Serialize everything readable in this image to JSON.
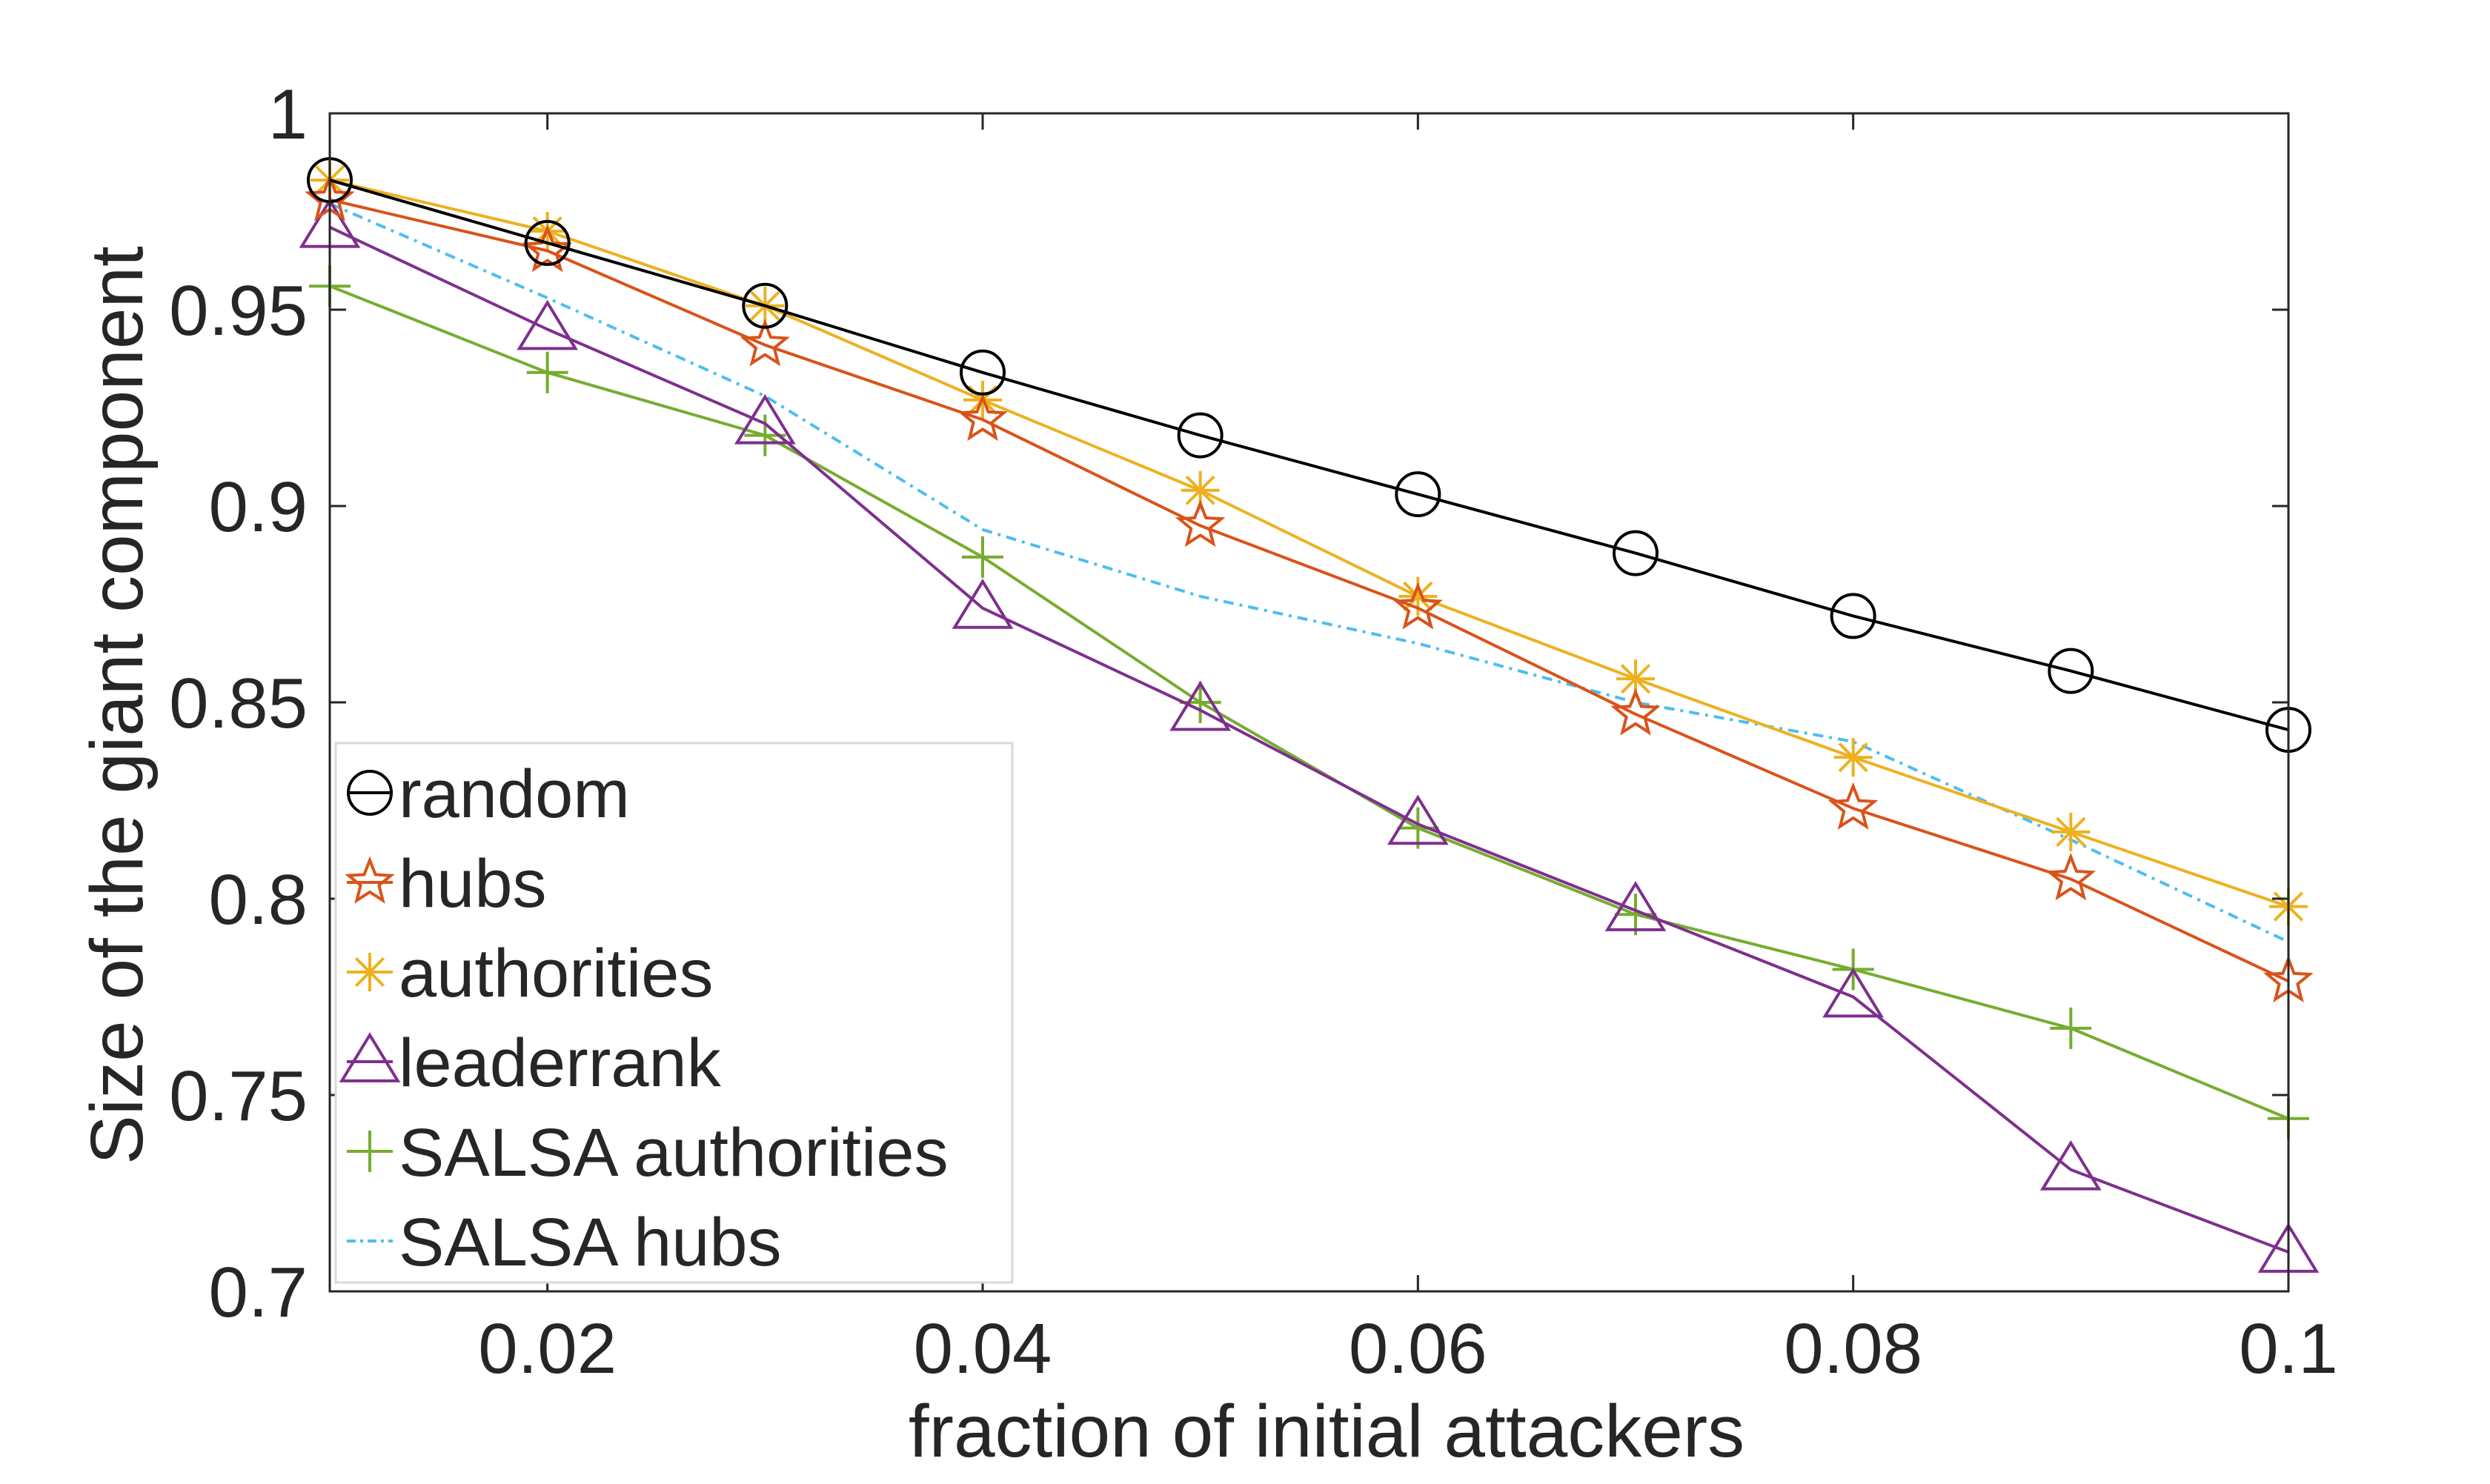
{
  "chart_data": {
    "type": "line",
    "title": "",
    "xlabel": "fraction of initial attackers",
    "ylabel": "Size of the giant component",
    "xlim": [
      0.01,
      0.1
    ],
    "ylim": [
      0.7,
      1
    ],
    "xticks": [
      0.02,
      0.04,
      0.06,
      0.08,
      0.1
    ],
    "xtick_labels": [
      "0.02",
      "0.04",
      "0.06",
      "0.08",
      "0.1"
    ],
    "yticks": [
      0.7,
      0.75,
      0.8,
      0.85,
      0.9,
      0.95,
      1
    ],
    "ytick_labels": [
      "0.7",
      "0.75",
      "0.8",
      "0.85",
      "0.9",
      "0.95",
      "1"
    ],
    "grid": false,
    "legend_position": "bottom-left",
    "x": [
      0.01,
      0.02,
      0.03,
      0.04,
      0.05,
      0.06,
      0.07,
      0.08,
      0.09,
      0.1
    ],
    "series": [
      {
        "name": "random",
        "color": "#000000",
        "marker": "circle",
        "dash": "solid",
        "values": [
          0.983,
          0.967,
          0.951,
          0.934,
          0.918,
          0.903,
          0.888,
          0.872,
          0.858,
          0.843
        ]
      },
      {
        "name": "hubs",
        "color": "#D95319",
        "marker": "star5",
        "dash": "solid",
        "values": [
          0.978,
          0.965,
          0.941,
          0.922,
          0.895,
          0.874,
          0.847,
          0.823,
          0.805,
          0.779
        ]
      },
      {
        "name": "authorities",
        "color": "#EDB120",
        "marker": "asterisk",
        "dash": "solid",
        "values": [
          0.983,
          0.97,
          0.951,
          0.927,
          0.904,
          0.877,
          0.856,
          0.836,
          0.817,
          0.798
        ]
      },
      {
        "name": "leaderrank",
        "color": "#7E2F8E",
        "marker": "triangle",
        "dash": "solid",
        "values": [
          0.971,
          0.945,
          0.921,
          0.874,
          0.848,
          0.819,
          0.797,
          0.775,
          0.731,
          0.71
        ]
      },
      {
        "name": "SALSA authorities",
        "color": "#77AC30",
        "marker": "plus",
        "dash": "solid",
        "values": [
          0.956,
          0.934,
          0.918,
          0.887,
          0.85,
          0.818,
          0.796,
          0.782,
          0.767,
          0.744
        ]
      },
      {
        "name": "SALSA hubs",
        "color": "#4DBEEE",
        "marker": "none",
        "dash": "dashdot",
        "values": [
          0.977,
          0.953,
          0.928,
          0.894,
          0.877,
          0.865,
          0.85,
          0.84,
          0.815,
          0.789
        ]
      }
    ]
  }
}
